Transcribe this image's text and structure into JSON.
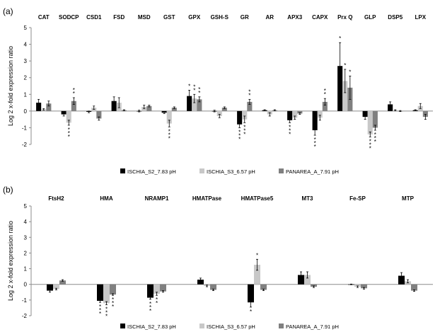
{
  "chart_data": [
    {
      "panel_label": "(a)",
      "type": "bar",
      "ylabel": "Log 2 x-fold expression ratio",
      "ylim": [
        -2,
        5
      ],
      "yticks": [
        "-2",
        "-1",
        "0",
        "1",
        "2",
        "3",
        "4",
        "5"
      ],
      "categories": [
        "CAT",
        "SODCP",
        "CSD1",
        "FSD",
        "MSD",
        "GST",
        "GPX",
        "GSH-S",
        "GR",
        "AR",
        "APX3",
        "CAPX",
        "Prx Q",
        "GLP",
        "DSP5",
        "LPX"
      ],
      "series": [
        {
          "name": "ISCHIA_S2_7.83 pH",
          "color": "#000000",
          "values": [
            0.5,
            -0.2,
            -0.05,
            0.6,
            0.0,
            -0.1,
            0.9,
            0.0,
            -0.8,
            0.05,
            -0.55,
            -1.15,
            2.7,
            -0.35,
            0.4,
            0.05
          ],
          "errors": [
            0.2,
            0.1,
            0.05,
            0.25,
            0.05,
            0.05,
            0.35,
            0.05,
            0.2,
            0.03,
            0.15,
            0.3,
            1.4,
            0.15,
            0.15,
            0.03
          ],
          "sig": [
            "",
            "",
            "",
            "",
            "",
            "",
            "*",
            "",
            "***",
            "",
            "***",
            "***",
            "*",
            "",
            "",
            ""
          ]
        },
        {
          "name": "ISCHIA_S3_6.57 pH",
          "color": "#c8c8c8",
          "values": [
            0.1,
            -0.7,
            0.2,
            0.5,
            0.25,
            -0.75,
            0.75,
            -0.3,
            -0.5,
            -0.2,
            -0.4,
            -0.4,
            1.8,
            -1.4,
            0.05,
            0.3
          ],
          "errors": [
            0.05,
            0.15,
            0.1,
            0.3,
            0.1,
            0.2,
            0.25,
            0.1,
            0.2,
            0.1,
            0.1,
            0.15,
            0.7,
            0.15,
            0.03,
            0.15
          ],
          "sig": [
            "",
            "***",
            "",
            "",
            "",
            "***",
            "**",
            "",
            "***",
            "",
            "",
            "",
            "*",
            "***",
            "",
            ""
          ]
        },
        {
          "name": "PANAREA_A_7.91 pH",
          "color": "#808080",
          "values": [
            0.45,
            0.6,
            -0.45,
            0.05,
            0.3,
            0.2,
            0.7,
            0.2,
            0.55,
            0.05,
            -0.15,
            0.55,
            1.4,
            -1.0,
            0.0,
            -0.35
          ],
          "errors": [
            0.15,
            0.2,
            0.1,
            0.03,
            0.05,
            0.05,
            0.15,
            0.05,
            0.15,
            0.03,
            0.05,
            0.2,
            0.7,
            0.15,
            0.03,
            0.15
          ],
          "sig": [
            "",
            "**",
            "",
            "",
            "",
            "",
            "**",
            "",
            "**",
            "",
            "",
            "**",
            "*",
            "***",
            "",
            ""
          ]
        }
      ],
      "legend": {
        "position": "bottom-center",
        "labels": [
          "ISCHIA_S2_7.83 pH",
          "ISCHIA_S3_6.57 pH",
          "PANAREA_A_7.91 pH"
        ]
      }
    },
    {
      "panel_label": "(b)",
      "type": "bar",
      "ylabel": "Log 2 x-fold expression ratio",
      "ylim": [
        -2,
        5
      ],
      "yticks": [
        "-2",
        "-1",
        "0",
        "1",
        "2",
        "3",
        "4",
        "5"
      ],
      "categories": [
        "FtsH2",
        "HMA",
        "NRAMP1",
        "HMATPase",
        "HMATPase5",
        "MT3",
        "Fe-SP",
        "MTP"
      ],
      "series": [
        {
          "name": "ISCHIA_S2_7.83 pH",
          "color": "#000000",
          "values": [
            -0.4,
            -1.05,
            -0.85,
            0.3,
            -1.15,
            0.6,
            0.0,
            0.55
          ],
          "errors": [
            0.1,
            0.1,
            0.1,
            0.1,
            0.3,
            0.2,
            0.02,
            0.2
          ],
          "sig": [
            "",
            "***",
            "***",
            "",
            "*",
            "",
            "",
            ""
          ]
        },
        {
          "name": "ISCHIA_S3_6.57 pH",
          "color": "#c8c8c8",
          "values": [
            -0.3,
            -1.2,
            -0.6,
            -0.1,
            1.25,
            0.6,
            -0.15,
            0.2
          ],
          "errors": [
            0.05,
            0.1,
            0.1,
            0.05,
            0.35,
            0.2,
            0.05,
            0.1
          ],
          "sig": [
            "",
            "***",
            "**",
            "",
            "*",
            "",
            "",
            ""
          ]
        },
        {
          "name": "PANAREA_A_7.91 pH",
          "color": "#808080",
          "values": [
            0.25,
            -0.65,
            -0.45,
            -0.35,
            -0.35,
            -0.15,
            -0.25,
            -0.4
          ],
          "errors": [
            0.05,
            0.05,
            0.05,
            0.05,
            0.05,
            0.05,
            0.05,
            0.05
          ],
          "sig": [
            "",
            "***",
            "",
            "",
            "",
            "",
            "",
            ""
          ]
        }
      ],
      "legend": {
        "position": "bottom-center",
        "labels": [
          "ISCHIA_S2_7.83 pH",
          "ISCHIA_S3_6.57 pH",
          "PANAREA_A_7.91 pH"
        ]
      }
    }
  ]
}
